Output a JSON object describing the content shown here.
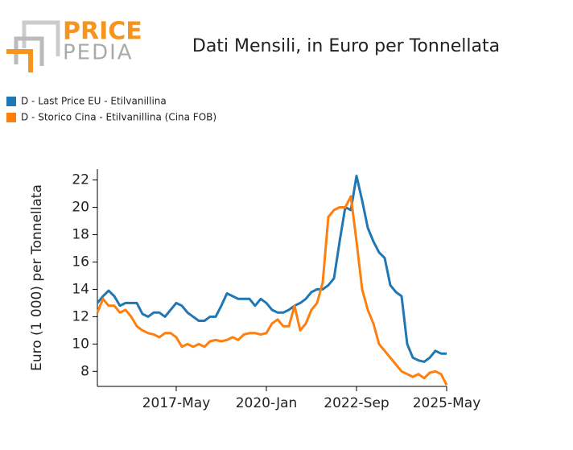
{
  "logo": {
    "top": "PRICE",
    "bottom": "PEDIA"
  },
  "chart_data": {
    "type": "line",
    "title": "Dati Mensili, in Euro per Tonnellata",
    "y_label": "Euro (1 000) per Tonnellata",
    "x": [
      "2015-Jan",
      "2015-Mar",
      "2015-May",
      "2015-Jul",
      "2015-Sep",
      "2015-Nov",
      "2016-Jan",
      "2016-Mar",
      "2016-May",
      "2016-Jul",
      "2016-Sep",
      "2016-Nov",
      "2017-Jan",
      "2017-Mar",
      "2017-May",
      "2017-Jul",
      "2017-Sep",
      "2017-Nov",
      "2018-Jan",
      "2018-Mar",
      "2018-May",
      "2018-Jul",
      "2018-Sep",
      "2018-Nov",
      "2019-Jan",
      "2019-Mar",
      "2019-May",
      "2019-Jul",
      "2019-Sep",
      "2019-Nov",
      "2020-Jan",
      "2020-Mar",
      "2020-May",
      "2020-Jul",
      "2020-Sep",
      "2020-Nov",
      "2021-Jan",
      "2021-Mar",
      "2021-May",
      "2021-Jul",
      "2021-Sep",
      "2021-Nov",
      "2022-Jan",
      "2022-Mar",
      "2022-May",
      "2022-Jul",
      "2022-Sep",
      "2022-Nov",
      "2023-Jan",
      "2023-Mar",
      "2023-May",
      "2023-Jul",
      "2023-Sep",
      "2023-Nov",
      "2024-Jan",
      "2024-Mar",
      "2024-May",
      "2024-Jul",
      "2024-Sep",
      "2024-Nov",
      "2025-Jan",
      "2025-Mar",
      "2025-May"
    ],
    "series": [
      {
        "name": "D - Last Price EU - Etilvanillina",
        "color": "#1f77b4",
        "values": [
          13.0,
          13.5,
          13.9,
          13.5,
          12.8,
          13.0,
          13.0,
          13.0,
          12.2,
          12.0,
          12.3,
          12.3,
          12.0,
          12.5,
          13.0,
          12.8,
          12.3,
          12.0,
          11.7,
          11.7,
          12.0,
          12.0,
          12.8,
          13.7,
          13.5,
          13.3,
          13.3,
          13.3,
          12.8,
          13.3,
          13.0,
          12.5,
          12.3,
          12.3,
          12.5,
          12.8,
          13.0,
          13.3,
          13.8,
          14.0,
          14.0,
          14.3,
          14.8,
          17.5,
          20.0,
          19.8,
          22.3,
          20.5,
          18.5,
          17.5,
          16.7,
          16.3,
          14.3,
          13.8,
          13.5,
          10.0,
          9.0,
          8.8,
          8.7,
          9.0,
          9.5,
          9.3,
          9.3
        ]
      },
      {
        "name": "D - Storico Cina - Etilvanillina (Cina FOB)",
        "color": "#ff7f0e",
        "values": [
          12.3,
          13.3,
          12.8,
          12.8,
          12.3,
          12.5,
          12.0,
          11.3,
          11.0,
          10.8,
          10.7,
          10.5,
          10.8,
          10.8,
          10.5,
          9.8,
          10.0,
          9.8,
          10.0,
          9.8,
          10.2,
          10.3,
          10.2,
          10.3,
          10.5,
          10.3,
          10.7,
          10.8,
          10.8,
          10.7,
          10.8,
          11.5,
          11.8,
          11.3,
          11.3,
          12.8,
          11.0,
          11.5,
          12.5,
          13.0,
          14.5,
          19.3,
          19.8,
          20.0,
          20.0,
          20.8,
          17.5,
          14.0,
          12.5,
          11.5,
          10.0,
          9.5,
          9.0,
          8.5,
          8.0,
          7.8,
          7.6,
          7.8,
          7.5,
          7.9,
          8.0,
          7.8,
          7.0
        ]
      }
    ],
    "xlim": [
      "2015-Jan",
      "2025-May"
    ],
    "xticks": [
      "2017-May",
      "2020-Jan",
      "2022-Sep",
      "2025-May"
    ],
    "ylim": [
      6.9,
      22.8
    ],
    "yticks": [
      8,
      10,
      12,
      14,
      16,
      18,
      20,
      22
    ],
    "grid": false
  }
}
